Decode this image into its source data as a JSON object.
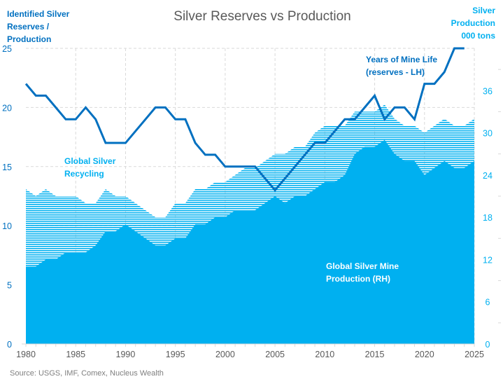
{
  "chart_data": {
    "type": "area+line",
    "title": "Silver Reserves vs Production",
    "ylabel_left": "Identified Silver Reserves / Production",
    "ylabel_right": "Silver Production 000 tons",
    "source": "Source: USGS, IMF, Comex, Nucleus Wealth",
    "x_ticks": [
      1980,
      1985,
      1990,
      1995,
      2000,
      2005,
      2010,
      2015,
      2020,
      2025
    ],
    "xlim": [
      1980,
      2025
    ],
    "ylim_left": [
      0,
      25
    ],
    "y_ticks_left": [
      0,
      5,
      10,
      15,
      20,
      25
    ],
    "ylim_right": [
      0,
      42
    ],
    "y_ticks_right": [
      0,
      6,
      12,
      18,
      24,
      30,
      36
    ],
    "grid": true,
    "colors": {
      "line": "#0070c0",
      "mine": "#00b0f0",
      "recycling": "#00b0f0",
      "left_axis": "#0070c0",
      "right_axis": "#00b0f0"
    },
    "series": [
      {
        "name": "Global Silver Mine Production (RH)",
        "label_lines": [
          "Global Silver Mine",
          "Production (RH)"
        ],
        "kind": "area-stacked",
        "axis": "right",
        "x": [
          1980,
          1981,
          1982,
          1983,
          1984,
          1985,
          1986,
          1987,
          1988,
          1989,
          1990,
          1991,
          1992,
          1993,
          1994,
          1995,
          1996,
          1997,
          1998,
          1999,
          2000,
          2001,
          2002,
          2003,
          2004,
          2005,
          2006,
          2007,
          2008,
          2009,
          2010,
          2011,
          2012,
          2013,
          2014,
          2015,
          2016,
          2017,
          2018,
          2019,
          2020,
          2021,
          2022,
          2023,
          2024,
          2025
        ],
        "values": [
          11,
          11,
          12,
          12,
          13,
          13,
          13,
          14,
          16,
          16,
          17,
          16,
          15,
          14,
          14,
          15,
          15,
          17,
          17,
          18,
          18,
          19,
          19,
          19,
          20,
          21,
          20,
          21,
          21,
          22,
          23,
          23,
          24,
          27,
          28,
          28,
          29,
          27,
          26,
          26,
          24,
          25,
          26,
          25,
          25,
          26
        ]
      },
      {
        "name": "Global Silver Recycling",
        "label_lines": [
          "Global Silver",
          "Recycling"
        ],
        "kind": "area-stacked-hatched",
        "axis": "right",
        "x": [
          1980,
          1981,
          1982,
          1983,
          1984,
          1985,
          1986,
          1987,
          1988,
          1989,
          1990,
          1991,
          1992,
          1993,
          1994,
          1995,
          1996,
          1997,
          1998,
          1999,
          2000,
          2001,
          2002,
          2003,
          2004,
          2005,
          2006,
          2007,
          2008,
          2009,
          2010,
          2011,
          2012,
          2013,
          2014,
          2015,
          2016,
          2017,
          2018,
          2019,
          2020,
          2021,
          2022,
          2023,
          2024,
          2025
        ],
        "values": [
          11,
          10,
          10,
          9,
          8,
          8,
          7,
          6,
          6,
          5,
          4,
          4,
          4,
          4,
          4,
          5,
          5,
          5,
          5,
          5,
          5,
          5,
          6,
          6,
          6,
          6,
          7,
          7,
          7,
          8,
          8,
          8,
          7,
          6,
          5,
          5,
          5,
          5,
          5,
          5,
          6,
          6,
          6,
          6,
          6,
          6
        ]
      },
      {
        "name": "Years of Mine Life (reserves - LH)",
        "label_lines": [
          "Years of Mine Life",
          "(reserves - LH)"
        ],
        "kind": "line",
        "axis": "left",
        "x": [
          1980,
          1981,
          1982,
          1983,
          1984,
          1985,
          1986,
          1987,
          1988,
          1989,
          1990,
          1991,
          1992,
          1993,
          1994,
          1995,
          1996,
          1997,
          1998,
          1999,
          2000,
          2001,
          2002,
          2003,
          2004,
          2005,
          2006,
          2007,
          2008,
          2009,
          2010,
          2011,
          2012,
          2013,
          2014,
          2015,
          2016,
          2017,
          2018,
          2019,
          2020,
          2021,
          2022,
          2023,
          2024
        ],
        "values": [
          22,
          21,
          21,
          20,
          19,
          19,
          20,
          19,
          17,
          17,
          17,
          18,
          19,
          20,
          20,
          19,
          19,
          17,
          16,
          16,
          15,
          15,
          15,
          15,
          14,
          13,
          14,
          15,
          16,
          17,
          17,
          18,
          19,
          19,
          20,
          21,
          19,
          20,
          20,
          19,
          22,
          22,
          23,
          25,
          25
        ]
      }
    ]
  }
}
